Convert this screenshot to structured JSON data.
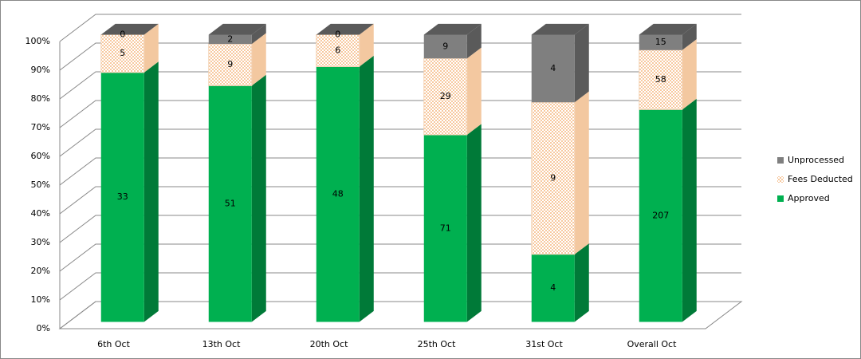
{
  "chart_data": {
    "type": "stacked_bar_3d",
    "stacking": "percent",
    "categories": [
      "6th Oct",
      "13th Oct",
      "20th Oct",
      "25th Oct",
      "31st Oct",
      "Overall Oct"
    ],
    "series": [
      {
        "name": "Approved",
        "color": "#00b050",
        "values": [
          33,
          51,
          48,
          71,
          4,
          207
        ]
      },
      {
        "name": "Fees Deducted",
        "color": "#fbd4b4",
        "values": [
          5,
          9,
          6,
          29,
          9,
          58
        ]
      },
      {
        "name": "Unprocessed",
        "color": "#7f7f7f",
        "values": [
          0,
          2,
          0,
          9,
          4,
          15
        ]
      }
    ],
    "ylim": [
      0,
      100
    ],
    "yticks": [
      {
        "value": 0,
        "label": "0%"
      },
      {
        "value": 10,
        "label": "10%"
      },
      {
        "value": 20,
        "label": "20%"
      },
      {
        "value": 30,
        "label": "30%"
      },
      {
        "value": 40,
        "label": "40%"
      },
      {
        "value": 50,
        "label": "50%"
      },
      {
        "value": 60,
        "label": "60%"
      },
      {
        "value": 70,
        "label": "70%"
      },
      {
        "value": 80,
        "label": "80%"
      },
      {
        "value": 90,
        "label": "90%"
      },
      {
        "value": 100,
        "label": "100%"
      }
    ],
    "grid": true,
    "legend": "right"
  }
}
